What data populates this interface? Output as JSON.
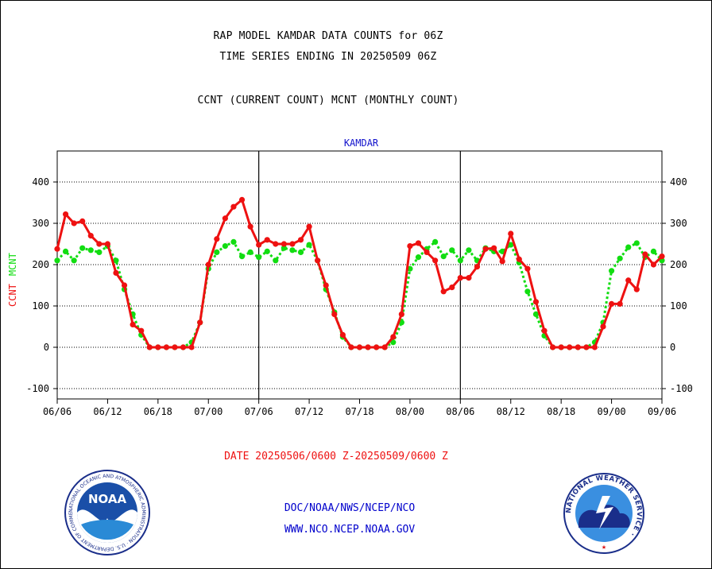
{
  "header": {
    "line1": "RAP MODEL KAMDAR DATA COUNTS for 06Z",
    "line2": "TIME SERIES ENDING IN 20250509 06Z",
    "line3": "CCNT (CURRENT COUNT) MCNT (MONTHLY COUNT)"
  },
  "footer": {
    "agency": "DOC/NOAA/NWS/NCEP/NCO",
    "url": "WWW.NCO.NCEP.NOAA.GOV"
  },
  "logos": {
    "noaa_text": "NOAA",
    "noaa_ring": "NATIONAL OCEANIC AND ATMOSPHERIC ADMINISTRATION · U.S. DEPARTMENT OF COMMERCE ·",
    "nws_ring": "NATIONAL WEATHER SERVICE ·"
  },
  "colors": {
    "ccnt": "#ee1111",
    "mcnt": "#11dd11",
    "title_blue": "#1111cc",
    "date_red": "#ee1111"
  },
  "chart_data": {
    "type": "line",
    "title": "KAMDAR",
    "xlabel": "DATE 20250506/0600 Z-20250509/0600 Z",
    "ylabel_series": [
      "CCNT",
      "MCNT"
    ],
    "ylim": [
      -125,
      475
    ],
    "yticks": [
      -100,
      0,
      100,
      200,
      300,
      400
    ],
    "xlim": [
      0,
      36
    ],
    "x_tick_labels": [
      "06/06",
      "06/12",
      "06/18",
      "07/00",
      "07/06",
      "07/12",
      "07/18",
      "08/00",
      "08/06",
      "08/12",
      "08/18",
      "09/00",
      "09/06"
    ],
    "x_tick_positions": [
      0,
      3,
      6,
      9,
      12,
      15,
      18,
      21,
      24,
      27,
      30,
      33,
      36
    ],
    "day_dividers": [
      12,
      24
    ],
    "grid": "horizontal dotted at y ticks",
    "series": [
      {
        "name": "CCNT",
        "color": "#ee1111",
        "points": [
          [
            0,
            238
          ],
          [
            0.5,
            322
          ],
          [
            1,
            300
          ],
          [
            1.5,
            305
          ],
          [
            2,
            270
          ],
          [
            2.5,
            250
          ],
          [
            3,
            250
          ],
          [
            3.5,
            180
          ],
          [
            4,
            150
          ],
          [
            4.5,
            55
          ],
          [
            5,
            40
          ],
          [
            5.5,
            0
          ],
          [
            6,
            0
          ],
          [
            6.5,
            0
          ],
          [
            7,
            0
          ],
          [
            7.5,
            0
          ],
          [
            8,
            0
          ],
          [
            8.5,
            60
          ],
          [
            9,
            200
          ],
          [
            9.5,
            262
          ],
          [
            10,
            312
          ],
          [
            10.5,
            340
          ],
          [
            11,
            357
          ],
          [
            11.5,
            292
          ],
          [
            12,
            248
          ],
          [
            12.5,
            260
          ],
          [
            13,
            250
          ],
          [
            13.5,
            250
          ],
          [
            14,
            250
          ],
          [
            14.5,
            260
          ],
          [
            15,
            292
          ],
          [
            15.5,
            210
          ],
          [
            16,
            150
          ],
          [
            16.5,
            80
          ],
          [
            17,
            30
          ],
          [
            17.5,
            0
          ],
          [
            18,
            0
          ],
          [
            18.5,
            0
          ],
          [
            19,
            0
          ],
          [
            19.5,
            0
          ],
          [
            20,
            25
          ],
          [
            20.5,
            80
          ],
          [
            21,
            245
          ],
          [
            21.5,
            252
          ],
          [
            22,
            230
          ],
          [
            22.5,
            210
          ],
          [
            23,
            135
          ],
          [
            23.5,
            145
          ],
          [
            24,
            168
          ],
          [
            24.5,
            168
          ],
          [
            25,
            195
          ],
          [
            25.5,
            238
          ],
          [
            26,
            240
          ],
          [
            26.5,
            208
          ],
          [
            27,
            275
          ],
          [
            27.5,
            213
          ],
          [
            28,
            190
          ],
          [
            28.5,
            110
          ],
          [
            29,
            40
          ],
          [
            29.5,
            0
          ],
          [
            30,
            0
          ],
          [
            30.5,
            0
          ],
          [
            31,
            0
          ],
          [
            31.5,
            0
          ],
          [
            32,
            0
          ],
          [
            32.5,
            50
          ],
          [
            33,
            105
          ],
          [
            33.5,
            105
          ],
          [
            34,
            162
          ],
          [
            34.5,
            140
          ],
          [
            35,
            225
          ],
          [
            35.5,
            200
          ],
          [
            36,
            220
          ]
        ]
      },
      {
        "name": "MCNT",
        "color": "#11dd11",
        "points": [
          [
            0,
            210
          ],
          [
            0.5,
            232
          ],
          [
            1,
            210
          ],
          [
            1.5,
            240
          ],
          [
            2,
            235
          ],
          [
            2.5,
            230
          ],
          [
            3,
            245
          ],
          [
            3.5,
            210
          ],
          [
            4,
            140
          ],
          [
            4.5,
            80
          ],
          [
            5,
            30
          ],
          [
            5.5,
            0
          ],
          [
            6,
            0
          ],
          [
            6.5,
            0
          ],
          [
            7,
            0
          ],
          [
            7.5,
            0
          ],
          [
            8,
            12
          ],
          [
            8.5,
            60
          ],
          [
            9,
            190
          ],
          [
            9.5,
            230
          ],
          [
            10,
            245
          ],
          [
            10.5,
            255
          ],
          [
            11,
            220
          ],
          [
            11.5,
            230
          ],
          [
            12,
            218
          ],
          [
            12.5,
            232
          ],
          [
            13,
            210
          ],
          [
            13.5,
            240
          ],
          [
            14,
            235
          ],
          [
            14.5,
            230
          ],
          [
            15,
            248
          ],
          [
            15.5,
            210
          ],
          [
            16,
            140
          ],
          [
            16.5,
            85
          ],
          [
            17,
            25
          ],
          [
            17.5,
            0
          ],
          [
            18,
            0
          ],
          [
            18.5,
            0
          ],
          [
            19,
            0
          ],
          [
            19.5,
            0
          ],
          [
            20,
            12
          ],
          [
            20.5,
            60
          ],
          [
            21,
            190
          ],
          [
            21.5,
            218
          ],
          [
            22,
            238
          ],
          [
            22.5,
            255
          ],
          [
            23,
            220
          ],
          [
            23.5,
            235
          ],
          [
            24,
            210
          ],
          [
            24.5,
            235
          ],
          [
            25,
            210
          ],
          [
            25.5,
            240
          ],
          [
            26,
            232
          ],
          [
            26.5,
            232
          ],
          [
            27,
            248
          ],
          [
            27.5,
            205
          ],
          [
            28,
            135
          ],
          [
            28.5,
            80
          ],
          [
            29,
            28
          ],
          [
            29.5,
            0
          ],
          [
            30,
            0
          ],
          [
            30.5,
            0
          ],
          [
            31,
            0
          ],
          [
            31.5,
            0
          ],
          [
            32,
            12
          ],
          [
            32.5,
            60
          ],
          [
            33,
            185
          ],
          [
            33.5,
            215
          ],
          [
            34,
            242
          ],
          [
            34.5,
            252
          ],
          [
            35,
            218
          ],
          [
            35.5,
            232
          ],
          [
            36,
            210
          ]
        ]
      }
    ]
  }
}
